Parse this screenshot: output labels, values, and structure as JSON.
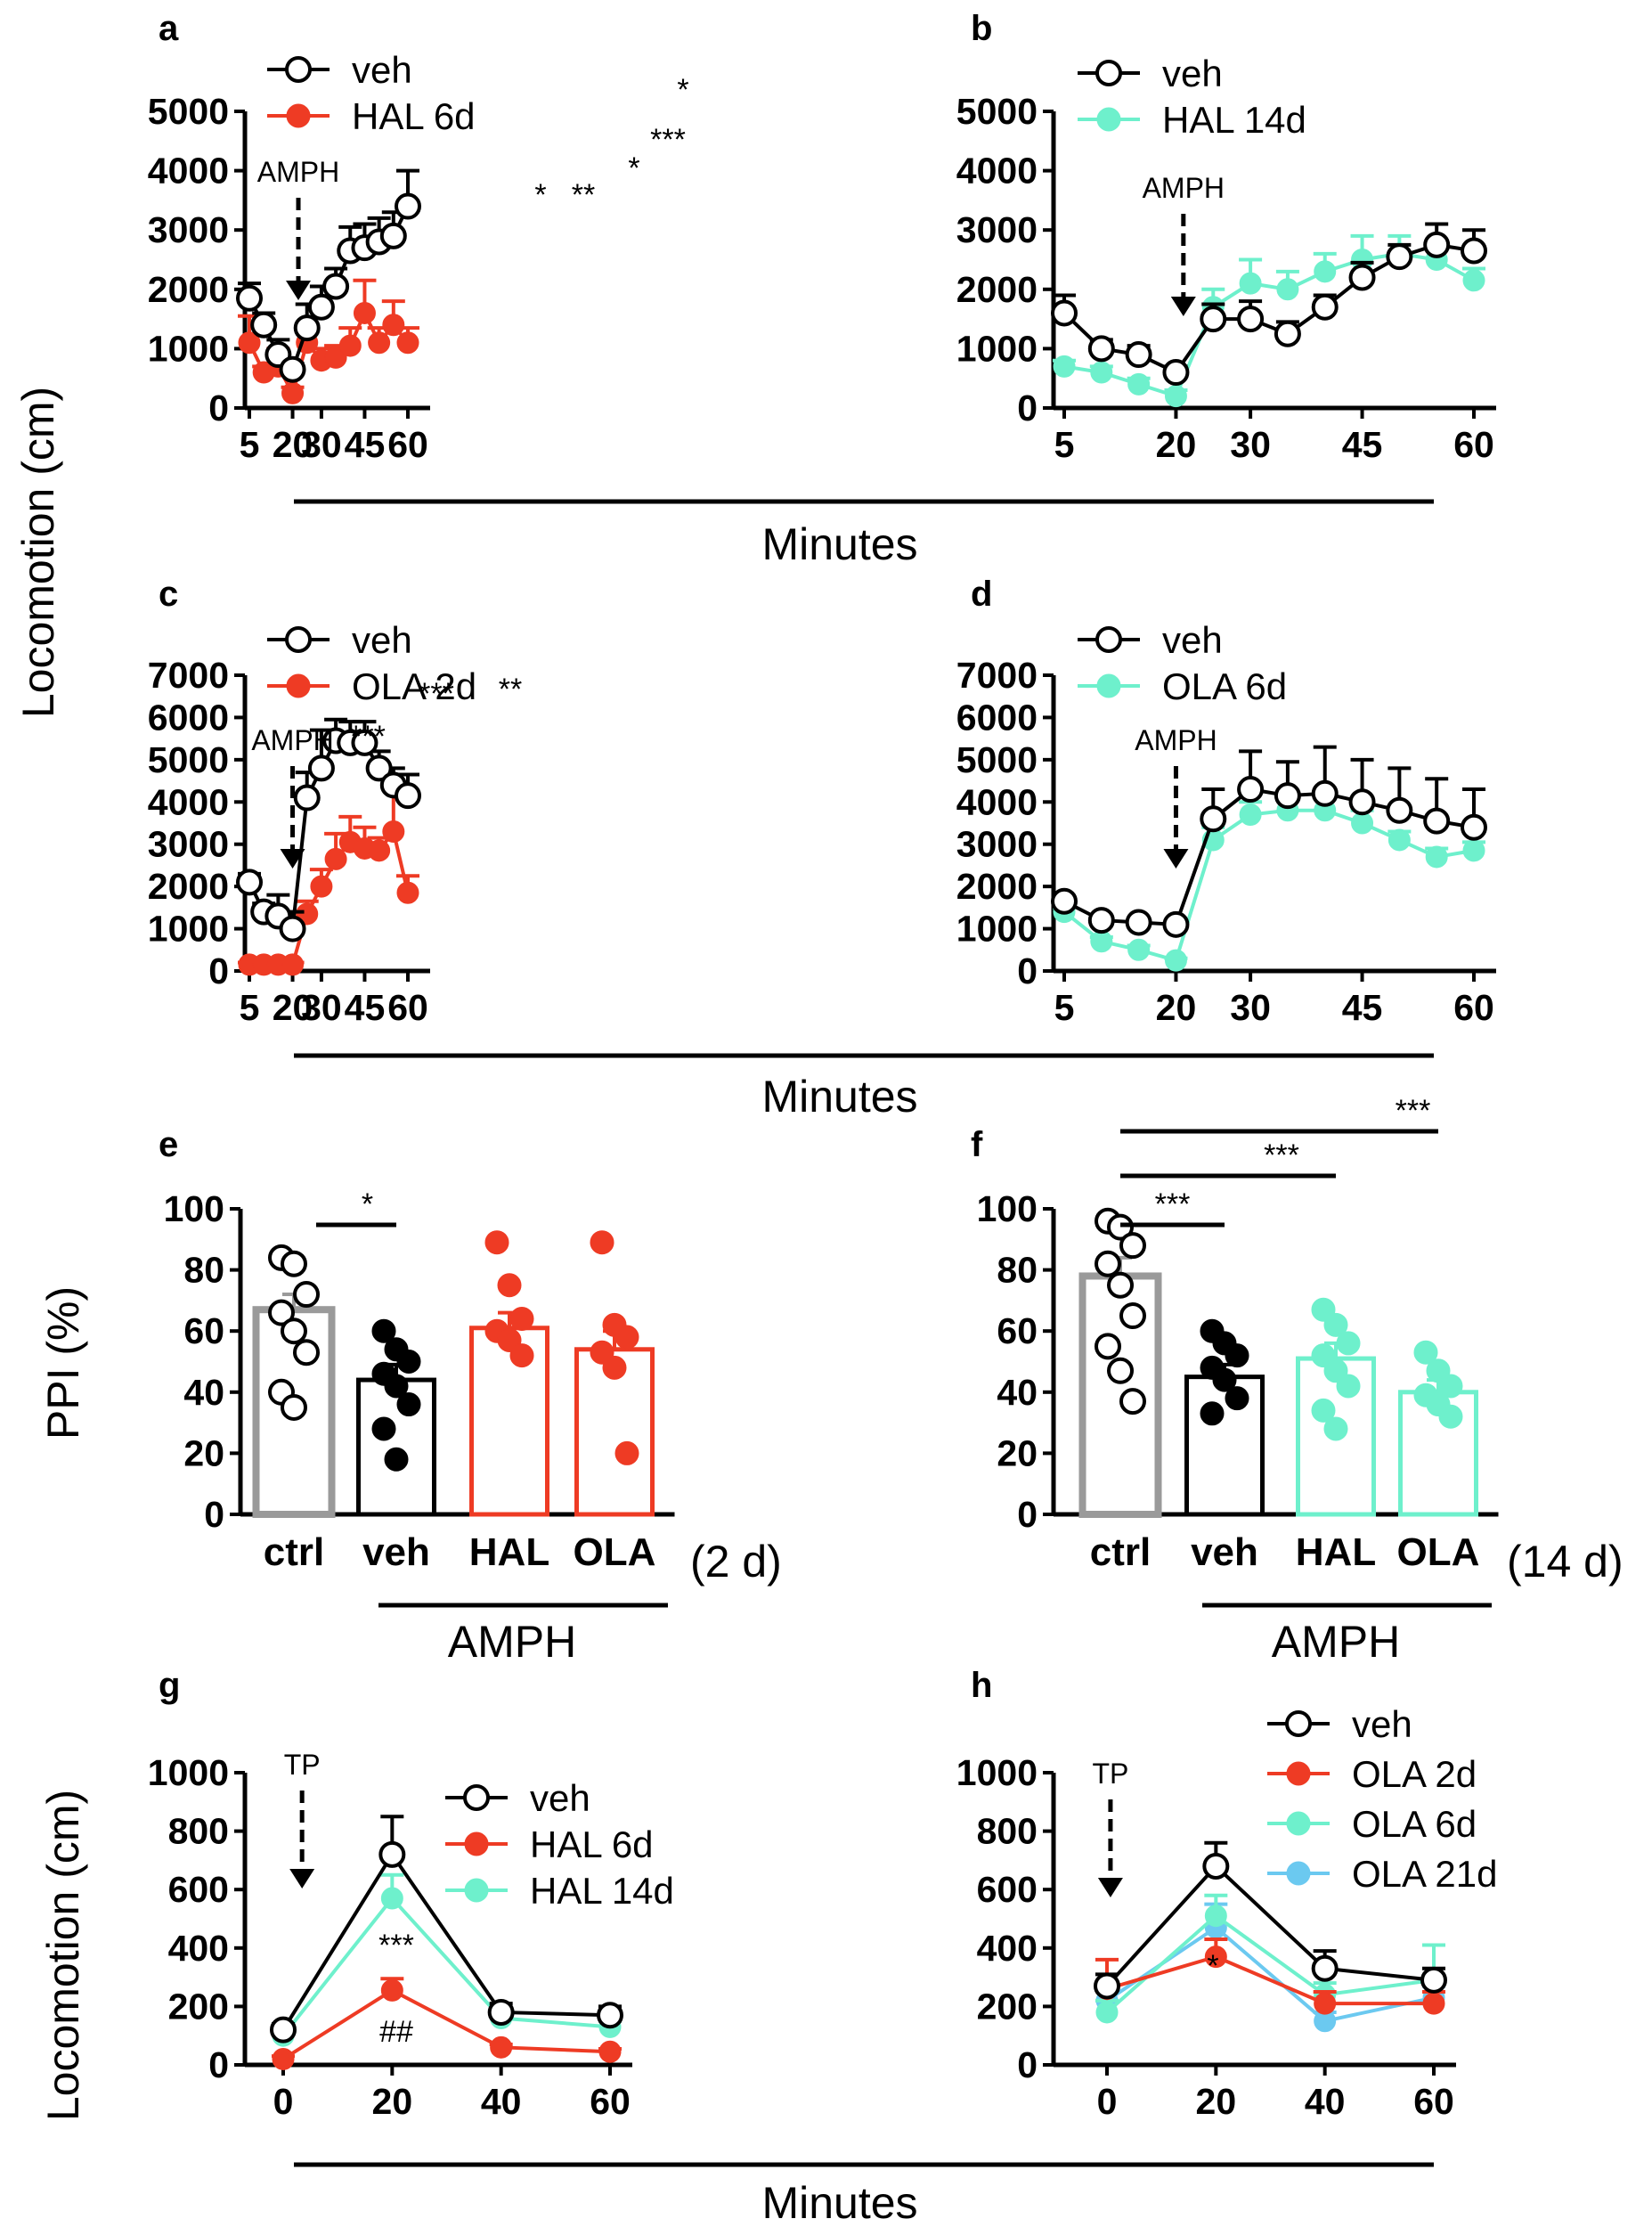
{
  "colors": {
    "veh": "#000000",
    "red": "#ee3b24",
    "cyan": "#6ef0cc",
    "blue": "#6bc9f0",
    "gray": "#9a9a9a"
  },
  "labels": {
    "y_top": "Locomotion (cm)",
    "minutes_1": "Minutes",
    "minutes_2": "Minutes",
    "minutes_3": "Minutes",
    "ppi": "PPI (%)",
    "amph_e": "AMPH",
    "amph_f": "AMPH",
    "days_e": "(2 d)",
    "days_f": "(14 d)",
    "y_bottom": "Locomotion (cm)"
  },
  "chart_data": [
    {
      "id": "a",
      "type": "line",
      "xlabel": "Minutes",
      "ylabel": "Locomotion (cm)",
      "x": [
        5,
        10,
        15,
        20,
        25,
        30,
        35,
        40,
        45,
        50,
        55,
        60
      ],
      "xticks": [
        5,
        20,
        30,
        45,
        60
      ],
      "ylim": [
        0,
        5000
      ],
      "yticks": [
        0,
        1000,
        2000,
        3000,
        4000,
        5000
      ],
      "series": [
        {
          "name": "veh",
          "color": "#000000",
          "open": true,
          "values": [
            1850,
            1400,
            900,
            650,
            1350,
            1700,
            2050,
            2650,
            2700,
            2800,
            2900,
            3400
          ],
          "errors": [
            250,
            200,
            250,
            100,
            400,
            350,
            300,
            400,
            400,
            400,
            400,
            600
          ]
        },
        {
          "name": "HAL 6d",
          "color": "#ee3b24",
          "open": false,
          "values": [
            1100,
            600,
            700,
            250,
            1100,
            800,
            850,
            1050,
            1600,
            1100,
            1400,
            1100
          ],
          "errors": [
            450,
            100,
            300,
            100,
            250,
            200,
            200,
            300,
            550,
            250,
            400,
            250
          ]
        }
      ],
      "annotations": [
        {
          "text": "AMPH",
          "x": 22
        },
        {
          "text": "*",
          "x": 40
        },
        {
          "text": "**",
          "x": 47.5
        },
        {
          "text": "*",
          "x": 55
        },
        {
          "text": "***",
          "x": 60
        },
        {
          "text": "*",
          "x": 61
        }
      ]
    },
    {
      "id": "b",
      "type": "line",
      "xlabel": "Minutes",
      "ylabel": "Locomotion (cm)",
      "x": [
        5,
        10,
        15,
        20,
        25,
        30,
        35,
        40,
        45,
        50,
        55,
        60
      ],
      "xticks": [
        5,
        20,
        30,
        45,
        60
      ],
      "ylim": [
        0,
        5000
      ],
      "yticks": [
        0,
        1000,
        2000,
        3000,
        4000,
        5000
      ],
      "series": [
        {
          "name": "veh",
          "color": "#000000",
          "open": true,
          "values": [
            1600,
            1000,
            900,
            600,
            1500,
            1500,
            1250,
            1700,
            2200,
            2550,
            2750,
            2650
          ],
          "errors": [
            300,
            150,
            150,
            100,
            250,
            300,
            200,
            200,
            250,
            200,
            350,
            350
          ]
        },
        {
          "name": "HAL 14d",
          "color": "#6ef0cc",
          "open": false,
          "values": [
            700,
            600,
            400,
            200,
            1700,
            2100,
            2000,
            2300,
            2500,
            2600,
            2500,
            2150
          ],
          "errors": [
            100,
            100,
            100,
            100,
            300,
            400,
            300,
            300,
            400,
            300,
            300,
            200
          ]
        }
      ],
      "annotations": [
        {
          "text": "AMPH",
          "x": 21
        }
      ]
    },
    {
      "id": "c",
      "type": "line",
      "xlabel": "Minutes",
      "ylabel": "Locomotion (cm)",
      "x": [
        5,
        10,
        15,
        20,
        25,
        30,
        35,
        40,
        45,
        50,
        55,
        60
      ],
      "xticks": [
        5,
        20,
        30,
        45,
        60
      ],
      "ylim": [
        0,
        7000
      ],
      "yticks": [
        0,
        1000,
        2000,
        3000,
        4000,
        5000,
        6000,
        7000
      ],
      "series": [
        {
          "name": "veh",
          "color": "#000000",
          "open": true,
          "values": [
            2100,
            1400,
            1300,
            1000,
            4100,
            4800,
            5450,
            5400,
            5400,
            4800,
            4400,
            4150
          ],
          "errors": [
            200,
            200,
            500,
            400,
            600,
            900,
            500,
            500,
            500,
            400,
            400,
            500
          ]
        },
        {
          "name": "OLA 2d",
          "color": "#ee3b24",
          "open": false,
          "values": [
            150,
            150,
            150,
            150,
            1350,
            2000,
            2650,
            3050,
            2900,
            2850,
            3300,
            1850
          ],
          "errors": [
            50,
            50,
            50,
            50,
            300,
            400,
            600,
            600,
            500,
            300,
            1000,
            400
          ]
        }
      ],
      "annotations": [
        {
          "text": "AMPH",
          "x": 20
        },
        {
          "text": "***",
          "x": 28
        },
        {
          "text": "***",
          "x": 33
        },
        {
          "text": "**",
          "x": 38
        }
      ]
    },
    {
      "id": "d",
      "type": "line",
      "xlabel": "Minutes",
      "ylabel": "Locomotion (cm)",
      "x": [
        5,
        10,
        15,
        20,
        25,
        30,
        35,
        40,
        45,
        50,
        55,
        60
      ],
      "xticks": [
        5,
        20,
        30,
        45,
        60
      ],
      "ylim": [
        0,
        7000
      ],
      "yticks": [
        0,
        1000,
        2000,
        3000,
        4000,
        5000,
        6000,
        7000
      ],
      "series": [
        {
          "name": "veh",
          "color": "#000000",
          "open": true,
          "values": [
            1650,
            1200,
            1150,
            1100,
            3600,
            4300,
            4150,
            4200,
            4000,
            3800,
            3550,
            3400
          ],
          "errors": [
            100,
            100,
            100,
            100,
            700,
            900,
            800,
            1100,
            1000,
            1000,
            1000,
            900
          ]
        },
        {
          "name": "OLA 6d",
          "color": "#6ef0cc",
          "open": false,
          "values": [
            1400,
            700,
            500,
            250,
            3100,
            3700,
            3800,
            3800,
            3500,
            3100,
            2700,
            2850
          ],
          "errors": [
            100,
            100,
            100,
            50,
            300,
            300,
            300,
            300,
            300,
            200,
            200,
            200
          ]
        }
      ],
      "annotations": [
        {
          "text": "AMPH",
          "x": 20
        }
      ]
    },
    {
      "id": "e",
      "type": "bar",
      "ylabel": "PPI (%)",
      "group": "AMPH",
      "note": "(2 d)",
      "categories": [
        "ctrl",
        "veh",
        "HAL",
        "OLA"
      ],
      "ylim": [
        0,
        100
      ],
      "yticks": [
        0,
        20,
        40,
        60,
        80,
        100
      ],
      "values": [
        67,
        44,
        61,
        54
      ],
      "errors": [
        5,
        5,
        5,
        6
      ],
      "bar_colors": [
        "#9a9a9a",
        "#000000",
        "#ee3b24",
        "#ee3b24"
      ],
      "open_points": [
        true,
        false,
        false,
        false
      ],
      "points": [
        [
          84,
          82,
          72,
          66,
          60,
          53,
          40,
          35
        ],
        [
          60,
          54,
          50,
          46,
          42,
          36,
          28,
          18
        ],
        [
          89,
          75,
          64,
          60,
          57,
          52
        ],
        [
          89,
          62,
          58,
          53,
          48,
          20
        ]
      ],
      "significance": [
        {
          "from": 0,
          "to": 1,
          "text": "*"
        }
      ]
    },
    {
      "id": "f",
      "type": "bar",
      "ylabel": "PPI (%)",
      "group": "AMPH",
      "note": "(14 d)",
      "categories": [
        "ctrl",
        "veh",
        "HAL",
        "OLA"
      ],
      "ylim": [
        0,
        100
      ],
      "yticks": [
        0,
        20,
        40,
        60,
        80,
        100
      ],
      "values": [
        78,
        45,
        51,
        40
      ],
      "errors": [
        6,
        4,
        5,
        4
      ],
      "bar_colors": [
        "#9a9a9a",
        "#000000",
        "#6ef0cc",
        "#6ef0cc"
      ],
      "open_points": [
        true,
        false,
        false,
        false
      ],
      "points": [
        [
          96,
          94,
          88,
          82,
          75,
          65,
          55,
          47,
          37
        ],
        [
          60,
          56,
          52,
          48,
          44,
          38,
          33
        ],
        [
          67,
          62,
          56,
          52,
          47,
          42,
          34,
          28
        ],
        [
          53,
          47,
          42,
          39,
          36,
          32
        ]
      ],
      "significance": [
        {
          "from": 0,
          "to": 1,
          "text": "***"
        },
        {
          "from": 0,
          "to": 2,
          "text": "***"
        },
        {
          "from": 0,
          "to": 3,
          "text": "***"
        }
      ]
    },
    {
      "id": "g",
      "type": "line",
      "xlabel": "Minutes",
      "ylabel": "Locomotion (cm)",
      "x": [
        0,
        20,
        40,
        60
      ],
      "xticks": [
        0,
        20,
        40,
        60
      ],
      "ylim": [
        0,
        1000
      ],
      "yticks": [
        0,
        200,
        400,
        600,
        800,
        1000
      ],
      "series": [
        {
          "name": "veh",
          "color": "#000000",
          "open": true,
          "values": [
            120,
            720,
            180,
            170
          ],
          "errors": [
            20,
            130,
            30,
            30
          ]
        },
        {
          "name": "HAL 6d",
          "color": "#ee3b24",
          "open": false,
          "values": [
            20,
            255,
            60,
            45
          ],
          "errors": [
            10,
            40,
            10,
            10
          ]
        },
        {
          "name": "HAL 14d",
          "color": "#6ef0cc",
          "open": false,
          "values": [
            100,
            570,
            160,
            130
          ],
          "errors": [
            20,
            80,
            30,
            20
          ]
        }
      ],
      "annotations": [
        {
          "text": "TP",
          "x": 10
        },
        {
          "text": "***",
          "x": 20
        },
        {
          "text": "##",
          "x": 20
        }
      ]
    },
    {
      "id": "h",
      "type": "line",
      "xlabel": "Minutes",
      "ylabel": "Locomotion (cm)",
      "x": [
        0,
        20,
        40,
        60
      ],
      "xticks": [
        0,
        20,
        40,
        60
      ],
      "ylim": [
        0,
        1000
      ],
      "yticks": [
        0,
        200,
        400,
        600,
        800,
        1000
      ],
      "series": [
        {
          "name": "veh",
          "color": "#000000",
          "open": true,
          "values": [
            270,
            680,
            330,
            290
          ],
          "errors": [
            40,
            80,
            60,
            40
          ]
        },
        {
          "name": "OLA 2d",
          "color": "#ee3b24",
          "open": false,
          "values": [
            260,
            370,
            210,
            210
          ],
          "errors": [
            100,
            60,
            40,
            40
          ]
        },
        {
          "name": "OLA 6d",
          "color": "#6ef0cc",
          "open": false,
          "values": [
            180,
            510,
            240,
            290
          ],
          "errors": [
            40,
            70,
            40,
            120
          ]
        },
        {
          "name": "OLA 21d",
          "color": "#6bc9f0",
          "open": false,
          "values": [
            220,
            470,
            150,
            230
          ],
          "errors": [
            40,
            80,
            30,
            40
          ]
        }
      ],
      "annotations": [
        {
          "text": "TP",
          "x": 8
        },
        {
          "text": "*",
          "x": 20
        }
      ]
    }
  ]
}
